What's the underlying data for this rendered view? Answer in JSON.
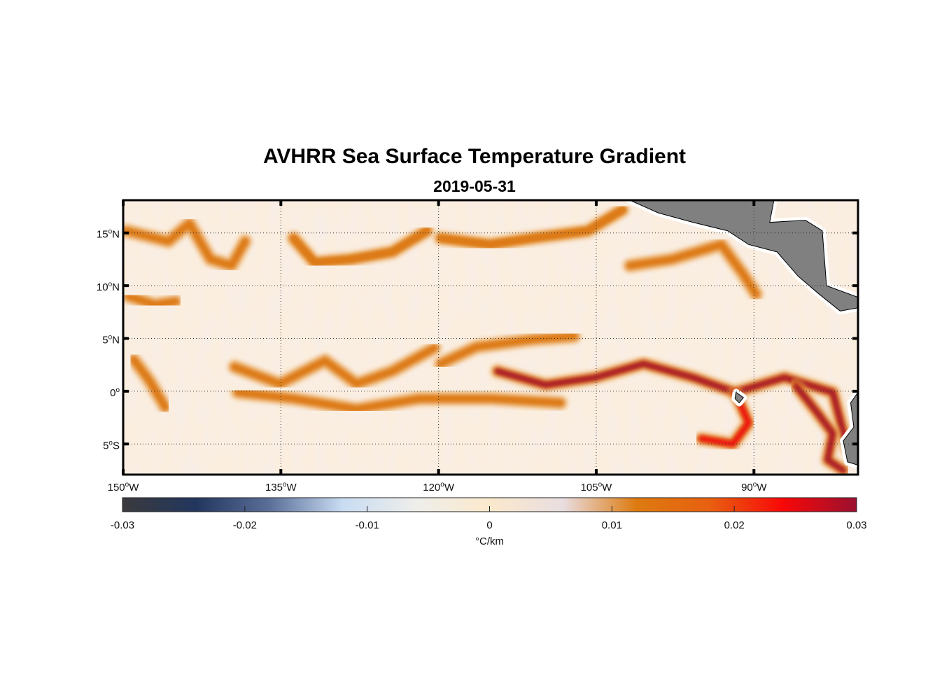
{
  "title": "AVHRR Sea Surface Temperature Gradient",
  "subtitle": "2019-05-31",
  "chart_data": {
    "type": "heatmap",
    "title": "AVHRR Sea Surface Temperature Gradient",
    "subtitle": "2019-05-31",
    "xlim": [
      -150,
      -80.1
    ],
    "ylim": [
      -7.9,
      18.1
    ],
    "grid": true,
    "x_ticks": [
      {
        "value": -150,
        "label": "150",
        "suffix": "W"
      },
      {
        "value": -135,
        "label": "135",
        "suffix": "W"
      },
      {
        "value": -120,
        "label": "120",
        "suffix": "W"
      },
      {
        "value": -105,
        "label": "105",
        "suffix": "W"
      },
      {
        "value": -90,
        "label": "90",
        "suffix": "W"
      }
    ],
    "y_ticks": [
      {
        "value": 15,
        "label": "15",
        "suffix": "N"
      },
      {
        "value": 10,
        "label": "10",
        "suffix": "N"
      },
      {
        "value": 5,
        "label": "5",
        "suffix": "N"
      },
      {
        "value": 0,
        "label": "0",
        "suffix": ""
      },
      {
        "value": -5,
        "label": "5",
        "suffix": "S"
      }
    ],
    "colorbar": {
      "range": [
        -0.03,
        0.03
      ],
      "ticks": [
        "-0.03",
        "-0.02",
        "-0.01",
        "0",
        "0.01",
        "0.02",
        "0.03"
      ],
      "tick_values": [
        -0.03,
        -0.02,
        -0.01,
        0,
        0.01,
        0.02,
        0.03
      ],
      "label": "°C/km",
      "colors": [
        "#3a3a3c",
        "#22365e",
        "#5a6e98",
        "#c8dcf2",
        "#eeeeea",
        "#fbe9cc",
        "#e8dde0",
        "#dd7a10",
        "#e86010",
        "#f80808",
        "#9a1030"
      ]
    },
    "background_value": 0.002,
    "fronts": [
      {
        "strength": 0.012,
        "points": [
          [
            -139.4,
            2.3
          ],
          [
            -135.1,
            0.7
          ],
          [
            -130.8,
            2.9
          ],
          [
            -127.8,
            0.7
          ],
          [
            -124.4,
            1.9
          ],
          [
            -120.4,
            4.1
          ]
        ]
      },
      {
        "strength": 0.009,
        "points": [
          [
            -139.1,
            -0.1
          ],
          [
            -133.8,
            -0.7
          ],
          [
            -127.8,
            -1.7
          ],
          [
            -121.8,
            -0.7
          ],
          [
            -115.1,
            -0.7
          ],
          [
            -108.4,
            -1.1
          ]
        ]
      },
      {
        "strength": 0.022,
        "points": [
          [
            -114.4,
            1.9
          ],
          [
            -109.8,
            0.6
          ],
          [
            -105.1,
            1.3
          ],
          [
            -100.5,
            2.6
          ],
          [
            -95.8,
            1.3
          ],
          [
            -91.8,
            -0.1
          ],
          [
            -87.1,
            1.3
          ],
          [
            -82.5,
            -0.1
          ],
          [
            -81.1,
            -5.4
          ]
        ]
      },
      {
        "strength": 0.009,
        "points": [
          [
            -119.8,
            2.6
          ],
          [
            -116.4,
            4.2
          ],
          [
            -111.1,
            4.9
          ],
          [
            -107.1,
            5.2
          ]
        ]
      },
      {
        "strength": 0.012,
        "points": [
          [
            -149.7,
            15.2
          ],
          [
            -145.7,
            14.2
          ],
          [
            -143.7,
            15.9
          ],
          [
            -141.7,
            12.5
          ],
          [
            -139.7,
            11.9
          ],
          [
            -138.4,
            14.2
          ]
        ]
      },
      {
        "strength": 0.014,
        "points": [
          [
            -133.8,
            14.5
          ],
          [
            -131.8,
            12.2
          ],
          [
            -128.4,
            12.5
          ],
          [
            -124.4,
            13.2
          ],
          [
            -121.1,
            15.2
          ]
        ]
      },
      {
        "strength": 0.013,
        "points": [
          [
            -119.8,
            14.5
          ],
          [
            -115.1,
            13.9
          ],
          [
            -111.1,
            14.5
          ],
          [
            -105.8,
            15.2
          ],
          [
            -102.5,
            17.2
          ]
        ]
      },
      {
        "strength": 0.01,
        "points": [
          [
            -101.8,
            11.9
          ],
          [
            -97.8,
            12.5
          ],
          [
            -93.1,
            13.9
          ],
          [
            -91.1,
            11.2
          ],
          [
            -89.8,
            9.2
          ]
        ]
      },
      {
        "strength": 0.02,
        "points": [
          [
            -91.8,
            -0.1
          ],
          [
            -90.5,
            -3
          ],
          [
            -92,
            -5
          ],
          [
            -95,
            -4.5
          ]
        ]
      },
      {
        "strength": 0.026,
        "points": [
          [
            -86,
            0.5
          ],
          [
            -84,
            -2
          ],
          [
            -82.5,
            -4
          ],
          [
            -83,
            -6.5
          ],
          [
            -81.5,
            -7.5
          ]
        ]
      },
      {
        "strength": 0.009,
        "points": [
          [
            -149,
            3
          ],
          [
            -147.5,
            1
          ],
          [
            -146,
            -1.5
          ]
        ]
      },
      {
        "strength": 0.009,
        "points": [
          [
            -149.5,
            9
          ],
          [
            -147,
            8.2
          ],
          [
            -145,
            8.5
          ]
        ]
      }
    ],
    "land": [
      [
        [
          -101.8,
          18.1
        ],
        [
          -99.1,
          16.9
        ],
        [
          -95.8,
          16.0
        ],
        [
          -92.5,
          15.2
        ],
        [
          -90.5,
          13.9
        ],
        [
          -87.8,
          13.2
        ],
        [
          -85.8,
          10.9
        ],
        [
          -83.8,
          9.2
        ],
        [
          -81.8,
          7.6
        ],
        [
          -80.1,
          7.9
        ],
        [
          -80.1,
          8.9
        ],
        [
          -83.1,
          10.0
        ],
        [
          -83.5,
          15.2
        ],
        [
          -85.1,
          16.2
        ],
        [
          -88.5,
          16.0
        ],
        [
          -88.1,
          18.1
        ]
      ],
      [
        [
          -80.1,
          -0.1
        ],
        [
          -80.8,
          -1.1
        ],
        [
          -80.5,
          -3.4
        ],
        [
          -81.5,
          -4.7
        ],
        [
          -81.1,
          -6.7
        ],
        [
          -80.1,
          -7.0
        ]
      ],
      [
        [
          -91.7,
          -0.1
        ],
        [
          -91.0,
          -0.6
        ],
        [
          -91.4,
          -1.1
        ],
        [
          -91.8,
          -0.7
        ]
      ]
    ],
    "land_color": "#808080"
  }
}
